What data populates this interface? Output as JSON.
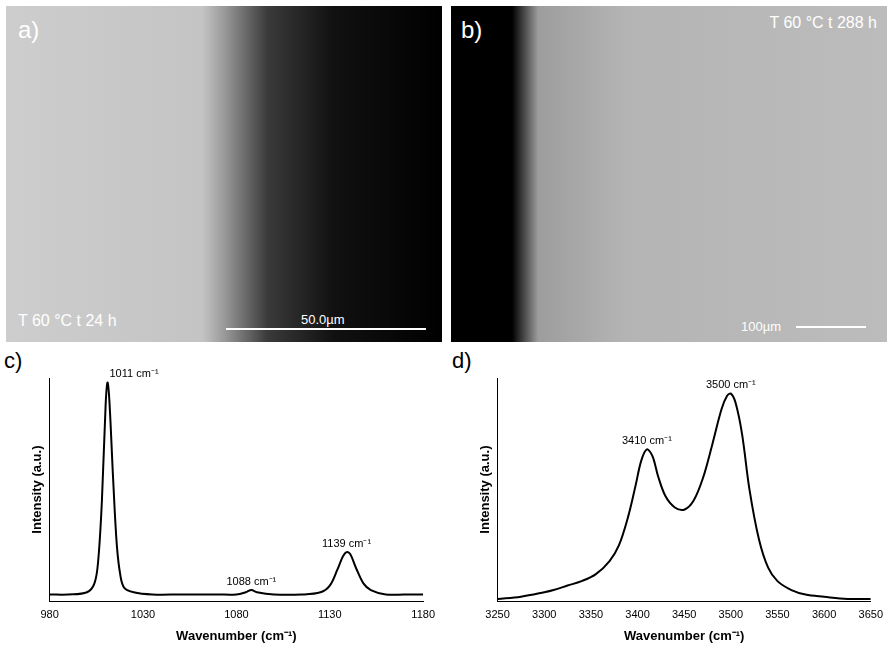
{
  "images": [
    {
      "label": "a)",
      "caption": "T 60 °C t 24 h",
      "scale_bar": "50.0µm"
    },
    {
      "label": "b)",
      "caption": "T 60 °C t 288 h",
      "scale_bar": "100µm"
    }
  ],
  "chart_data": [
    {
      "panel": "c)",
      "type": "line",
      "x_label": "Wavenumber (cm⁻¹)",
      "y_label": "Intensity (a.u.)",
      "x": [
        980,
        990,
        1000,
        1004,
        1006,
        1008,
        1010,
        1011,
        1012,
        1014,
        1016,
        1018,
        1020,
        1025,
        1035,
        1050,
        1070,
        1080,
        1085,
        1088,
        1091,
        1100,
        1115,
        1125,
        1130,
        1134,
        1137,
        1139,
        1141,
        1144,
        1148,
        1152,
        1160,
        1170,
        1180
      ],
      "values": [
        0.03,
        0.03,
        0.04,
        0.08,
        0.18,
        0.45,
        0.88,
        0.98,
        0.9,
        0.55,
        0.25,
        0.11,
        0.06,
        0.04,
        0.03,
        0.03,
        0.03,
        0.03,
        0.04,
        0.05,
        0.04,
        0.03,
        0.03,
        0.04,
        0.07,
        0.14,
        0.2,
        0.22,
        0.21,
        0.15,
        0.08,
        0.05,
        0.03,
        0.03,
        0.03
      ],
      "color": "#000000",
      "xlim": [
        980,
        1180
      ],
      "xticks": [
        980,
        1030,
        1080,
        1130,
        1180
      ],
      "ylim": [
        0,
        1
      ],
      "tick_labels": "x",
      "grid": false,
      "annotations": [
        {
          "text": "1011 cm⁻¹",
          "x": 1011,
          "y": 0.98
        },
        {
          "text": "1088 cm⁻¹",
          "x": 1088,
          "y": 0.05
        },
        {
          "text": "1139 cm⁻¹",
          "x": 1139,
          "y": 0.22
        }
      ]
    },
    {
      "panel": "d)",
      "type": "line",
      "x_label": "Wavenumber (cm⁻¹)",
      "y_label": "Intensity (a.u.)",
      "x": [
        3250,
        3275,
        3300,
        3310,
        3325,
        3340,
        3355,
        3370,
        3380,
        3390,
        3398,
        3404,
        3410,
        3416,
        3422,
        3430,
        3440,
        3450,
        3460,
        3470,
        3480,
        3490,
        3496,
        3500,
        3505,
        3512,
        3520,
        3530,
        3540,
        3550,
        3565,
        3580,
        3600,
        3625,
        3650
      ],
      "values": [
        0.01,
        0.02,
        0.04,
        0.05,
        0.07,
        0.09,
        0.12,
        0.18,
        0.25,
        0.38,
        0.52,
        0.63,
        0.68,
        0.65,
        0.56,
        0.47,
        0.42,
        0.41,
        0.45,
        0.55,
        0.7,
        0.86,
        0.92,
        0.93,
        0.89,
        0.75,
        0.5,
        0.28,
        0.15,
        0.09,
        0.05,
        0.03,
        0.02,
        0.01,
        0.01
      ],
      "color": "#000000",
      "xlim": [
        3250,
        3650
      ],
      "xticks": [
        3250,
        3300,
        3350,
        3400,
        3450,
        3500,
        3550,
        3600,
        3650
      ],
      "ylim": [
        0,
        1
      ],
      "tick_labels": "x",
      "grid": false,
      "annotations": [
        {
          "text": "3410 cm⁻¹",
          "x": 3410,
          "y": 0.68
        },
        {
          "text": "3500 cm⁻¹",
          "x": 3500,
          "y": 0.93
        }
      ]
    }
  ]
}
